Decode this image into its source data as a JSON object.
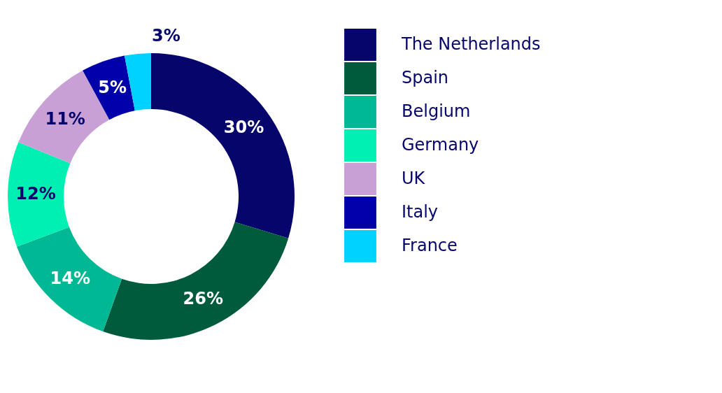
{
  "chart_data": {
    "type": "donut",
    "categories": [
      "The Netherlands",
      "Spain",
      "Belgium",
      "Germany",
      "UK",
      "Italy",
      "France"
    ],
    "values": [
      30,
      26,
      14,
      12,
      11,
      5,
      3
    ],
    "value_labels": [
      "30%",
      "26%",
      "14%",
      "12%",
      "11%",
      "5%",
      "3%"
    ],
    "colors": [
      "#05056b",
      "#005a3c",
      "#00b894",
      "#00f0b4",
      "#c8a0d6",
      "#0000aa",
      "#00d2ff"
    ],
    "legend": "right"
  }
}
